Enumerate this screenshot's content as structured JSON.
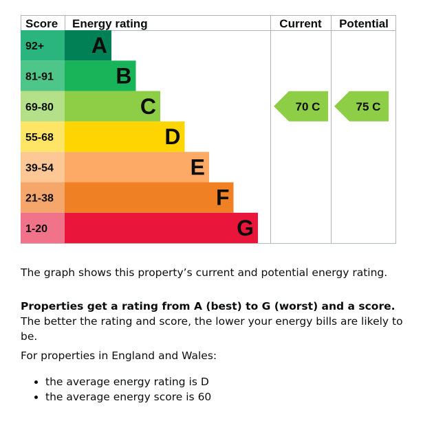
{
  "chart_data": {
    "type": "bar",
    "headers": {
      "score": "Score",
      "rating": "Energy rating",
      "current": "Current",
      "potential": "Potential"
    },
    "bands": [
      {
        "letter": "A",
        "range": "92+",
        "color": "#008054",
        "range_color": "#2bb57e"
      },
      {
        "letter": "B",
        "range": "81-91",
        "color": "#19b459",
        "range_color": "#4ec68a"
      },
      {
        "letter": "C",
        "range": "69-80",
        "color": "#8dce46",
        "range_color": "#b4e08a"
      },
      {
        "letter": "D",
        "range": "55-68",
        "color": "#ffd500",
        "range_color": "#ffe566"
      },
      {
        "letter": "E",
        "range": "39-54",
        "color": "#fcaa65",
        "range_color": "#fdc796"
      },
      {
        "letter": "F",
        "range": "21-38",
        "color": "#ef8023",
        "range_color": "#f4a66b"
      },
      {
        "letter": "G",
        "range": "1-20",
        "color": "#e9153b",
        "range_color": "#f0738a"
      }
    ],
    "current": {
      "score": 70,
      "letter": "C",
      "label": "70  C",
      "color": "#8dce46"
    },
    "potential": {
      "score": 75,
      "letter": "C",
      "label": "75  C",
      "color": "#8dce46"
    }
  },
  "text": {
    "p1": "The graph shows this property’s current and potential energy rating.",
    "p2_bold": "Properties get a rating from A (best) to G (worst) and a score.",
    "p2_rest": " The better the rating and score, the lower your energy bills are likely to be.",
    "p3": "For properties in England and Wales:",
    "bullets": [
      "the average energy rating is D",
      "the average energy score is 60"
    ]
  }
}
